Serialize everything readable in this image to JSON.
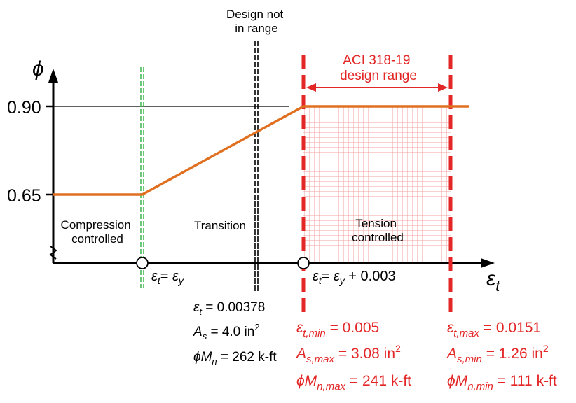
{
  "axes": {
    "y_symbol": "ϕ",
    "x_symbol": "ε",
    "x_sub": "t",
    "y_ticks": [
      "0.90",
      "0.65"
    ]
  },
  "regions": {
    "compression": [
      "Compression",
      "controlled"
    ],
    "transition": "Transition",
    "tension": [
      "Tension",
      "controlled"
    ]
  },
  "markers": {
    "eps_y": {
      "lhs": "ε",
      "lhs_sub": "t",
      "eq": "= ",
      "rhs": "ε",
      "rhs_sub": "y"
    },
    "eps_tension": {
      "lhs": "ε",
      "lhs_sub": "t",
      "eq": "= ",
      "rhs": "ε",
      "rhs_sub": "y",
      "tail": " + 0.003"
    }
  },
  "design_not_in_range": {
    "title": [
      "Design not",
      "in range"
    ],
    "eps": {
      "sym": "ε",
      "sub": "t",
      "val": " = 0.00378"
    },
    "area": {
      "sym": "A",
      "sub": "s",
      "val": " = 4.0 in",
      "sup": "2"
    },
    "moment": {
      "sym": "ϕM",
      "sub": "n",
      "val": " = 262 k-ft"
    }
  },
  "aci_range": {
    "title": [
      "ACI 318-19",
      "design range"
    ],
    "min": {
      "eps": {
        "sym": "ε",
        "sub": "t,min",
        "val": " = 0.005"
      },
      "area": {
        "sym": "A",
        "sub": "s,max",
        "val": " = 3.08 in",
        "sup": "2"
      },
      "moment": {
        "sym": "ϕM",
        "sub": "n,max",
        "val": " = 241 k-ft"
      }
    },
    "max": {
      "eps": {
        "sym": "ε",
        "sub": "t,max",
        "val": " = 0.0151"
      },
      "area": {
        "sym": "A",
        "sub": "s,min",
        "val": " = 1.26 in",
        "sup": "2"
      },
      "moment": {
        "sym": "ϕM",
        "sub": "n,min",
        "val": " = 111 k-ft"
      }
    }
  },
  "colors": {
    "curve": "#e07020",
    "red": "#e32626",
    "green": "#39b54a",
    "grid": "#f2a0a0",
    "axis": "#000000"
  }
}
